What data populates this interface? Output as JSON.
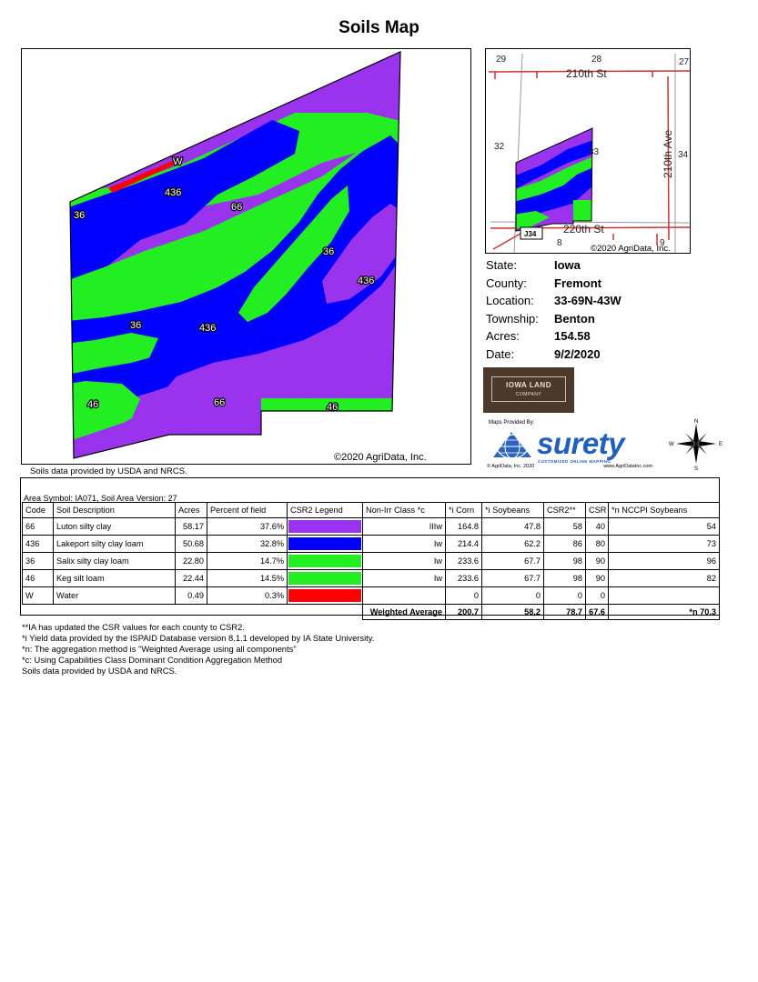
{
  "page": {
    "title": "Soils Map"
  },
  "colors": {
    "luton": "#9933ee",
    "lakeport": "#0000ff",
    "salix": "#22ee22",
    "keg": "#22ee22",
    "water": "#ff0000",
    "roads": "#cc3333"
  },
  "main_map": {
    "labels": {
      "w": "W",
      "l436a": "436",
      "l66a": "66",
      "l36a": "36",
      "l36b": "36",
      "l436b": "436",
      "l36c": "36",
      "l436c": "436",
      "l46a": "46",
      "l66b": "66",
      "l46b": "46"
    },
    "copyright": "©2020 AgriData, Inc."
  },
  "soils_note_top": "Soils data provided by USDA and NRCS.",
  "location_map": {
    "sections": {
      "s29": "29",
      "s28": "28",
      "s27": "27",
      "s32": "32",
      "s33": "33",
      "s34": "34",
      "s8": "8",
      "s9": "9"
    },
    "roads": {
      "r210st": "210th St",
      "r220st": "220th St",
      "r210ave": "210th Ave",
      "j34": "J34"
    },
    "copyright": "©2020 AgriData, Inc."
  },
  "info": {
    "state_label": "State:",
    "state": "Iowa",
    "county_label": "County:",
    "county": "Fremont",
    "location_label": "Location:",
    "location": "33-69N-43W",
    "township_label": "Township:",
    "township": "Benton",
    "acres_label": "Acres:",
    "acres": "154.58",
    "date_label": "Date:",
    "date": "9/2/2020"
  },
  "logos": {
    "iowa_land": "IOWA LAND",
    "iowa_land_sub": "COMPANY",
    "surety_provided": "Maps Provided By:",
    "surety_word": "surety",
    "surety_tag": "CUSTOMIZED ONLINE MAPPING",
    "surety_copy": "© AgriData, Inc. 2020",
    "surety_url": "www.AgriDataInc.com"
  },
  "compass": {
    "n": "N",
    "s": "S",
    "e": "E",
    "w": "W"
  },
  "table": {
    "area_symbol": "Area Symbol: IA071, Soil Area Version: 27",
    "headers": [
      "Code",
      "Soil Description",
      "Acres",
      "Percent of field",
      "CSR2 Legend",
      "Non-Irr Class *c",
      "*i Corn",
      "*i Soybeans",
      "CSR2**",
      "CSR",
      "*n NCCPI Soybeans"
    ],
    "rows": [
      {
        "code": "66",
        "desc": "Luton silty clay",
        "acres": "58.17",
        "pct": "37.6%",
        "color": "#9933ee",
        "cls": "IIIw",
        "corn": "164.8",
        "soy": "47.8",
        "csr2": "58",
        "csr": "40",
        "nccpi": "54"
      },
      {
        "code": "436",
        "desc": "Lakeport silty clay loam",
        "acres": "50.68",
        "pct": "32.8%",
        "color": "#0000ff",
        "cls": "Iw",
        "corn": "214.4",
        "soy": "62.2",
        "csr2": "86",
        "csr": "80",
        "nccpi": "73"
      },
      {
        "code": "36",
        "desc": "Salix silty clay loam",
        "acres": "22.80",
        "pct": "14.7%",
        "color": "#22ee22",
        "cls": "Iw",
        "corn": "233.6",
        "soy": "67.7",
        "csr2": "98",
        "csr": "90",
        "nccpi": "96"
      },
      {
        "code": "46",
        "desc": "Keg silt loam",
        "acres": "22.44",
        "pct": "14.5%",
        "color": "#22ee22",
        "cls": "Iw",
        "corn": "233.6",
        "soy": "67.7",
        "csr2": "98",
        "csr": "90",
        "nccpi": "82"
      },
      {
        "code": "W",
        "desc": "Water",
        "acres": "0.49",
        "pct": "0.3%",
        "color": "#ff0000",
        "cls": "",
        "corn": "0",
        "soy": "0",
        "csr2": "0",
        "csr": "0",
        "nccpi": ""
      }
    ],
    "weighted": {
      "label": "Weighted Average",
      "corn": "200.7",
      "soy": "58.2",
      "csr2": "78.7",
      "csr": "67.6",
      "nccpi": "*n 70.3"
    }
  },
  "notes": [
    "**IA has updated the CSR values for each county to CSR2.",
    "*i Yield data provided by the ISPAID Database version 8.1.1 developed by IA State University.",
    "*n: The aggregation method is \"Weighted Average using all components\"",
    "*c: Using Capabilities Class Dominant Condition Aggregation Method",
    "Soils data provided by USDA and NRCS."
  ]
}
